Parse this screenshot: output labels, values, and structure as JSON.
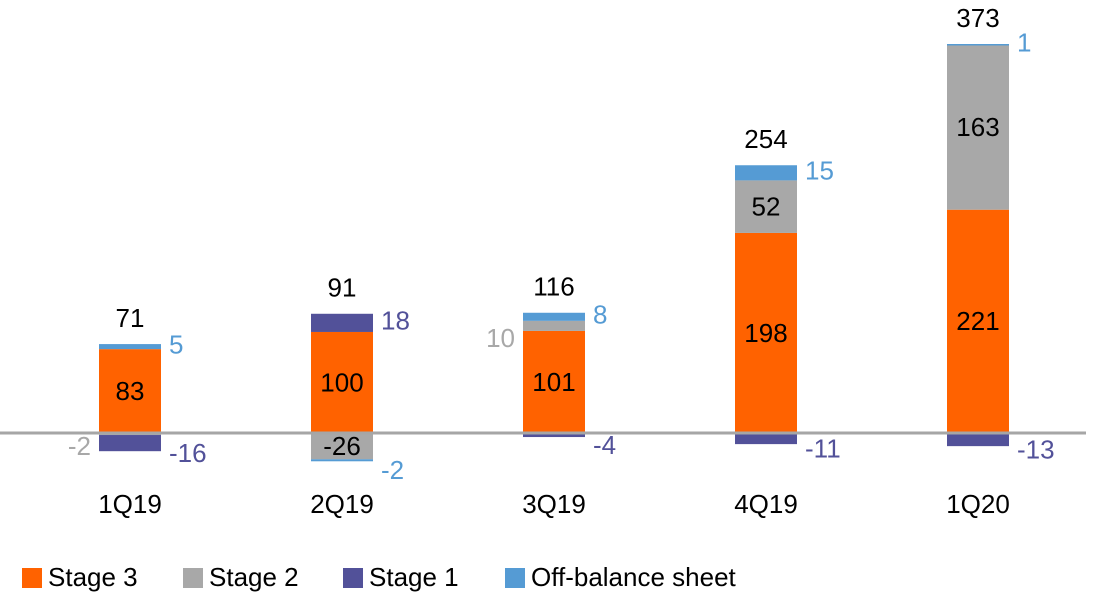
{
  "chart_data": {
    "type": "stacked-bar",
    "categories": [
      "1Q19",
      "2Q19",
      "3Q19",
      "4Q19",
      "1Q20"
    ],
    "series": [
      {
        "name": "Stage 3",
        "color": "#ff6200",
        "values": [
          83,
          100,
          101,
          198,
          221
        ]
      },
      {
        "name": "Stage 2",
        "color": "#a8a8a8",
        "values": [
          -2,
          -26,
          10,
          52,
          163
        ]
      },
      {
        "name": "Stage 1",
        "color": "#525199",
        "values": [
          -16,
          18,
          -4,
          -11,
          -13
        ]
      },
      {
        "name": "Off-balance sheet",
        "color": "#559bd4",
        "values": [
          5,
          -2,
          8,
          15,
          1
        ]
      }
    ],
    "totals": [
      71,
      91,
      116,
      254,
      373
    ]
  }
}
